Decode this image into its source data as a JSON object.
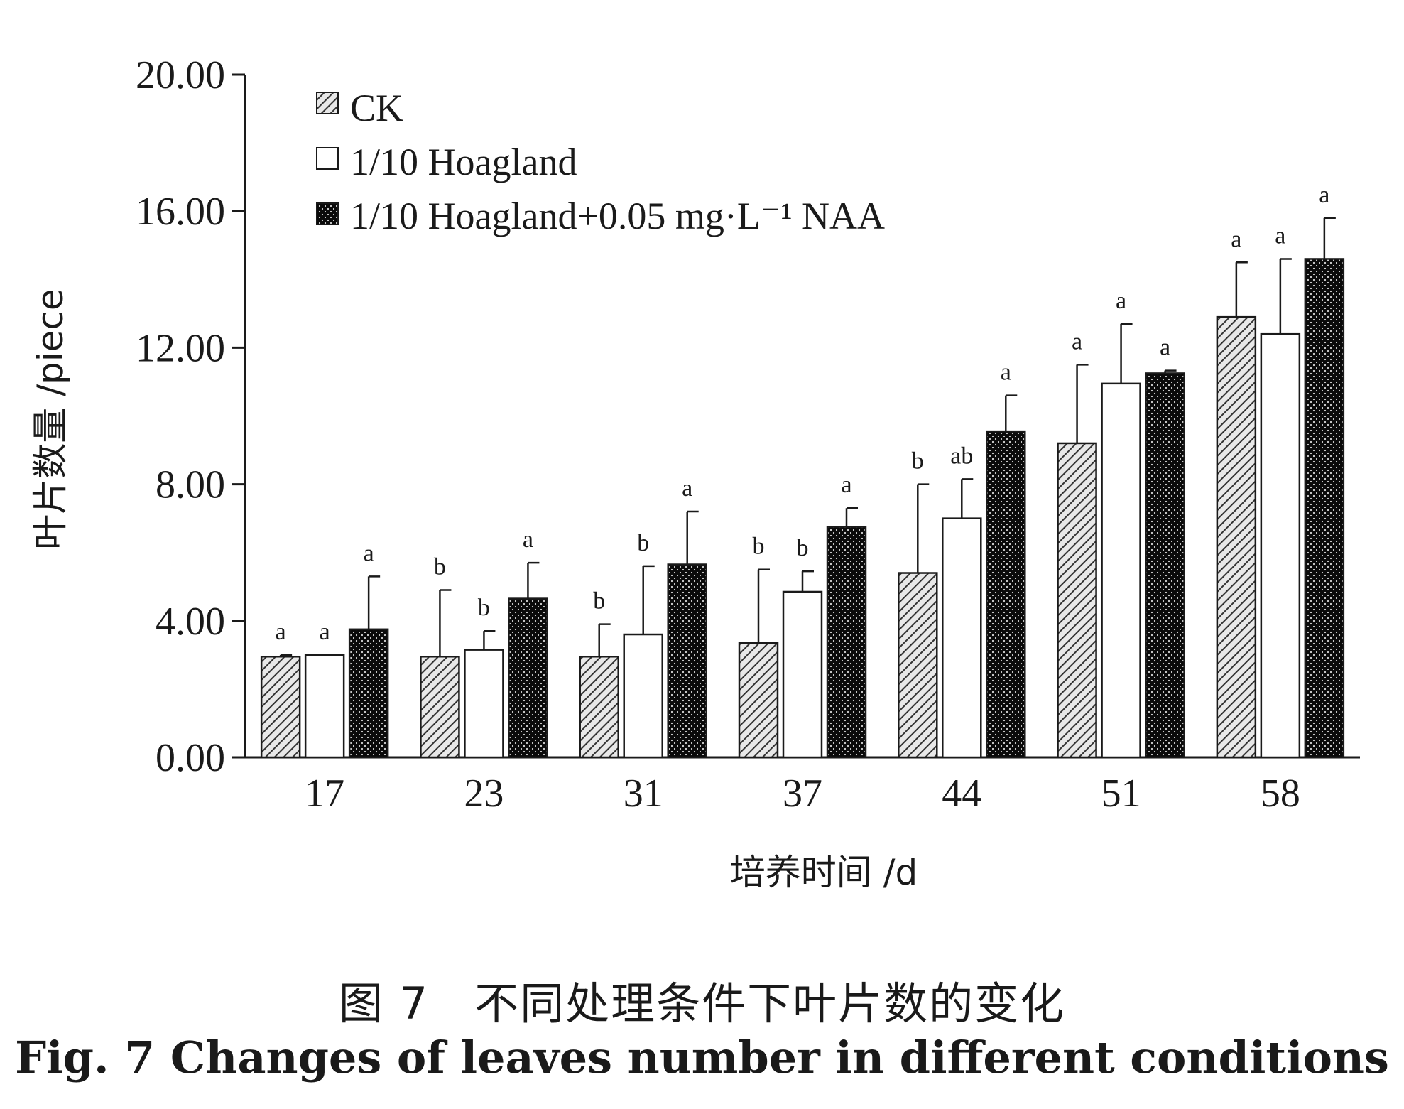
{
  "chart_data": {
    "type": "bar",
    "categories": [
      "17",
      "23",
      "31",
      "37",
      "44",
      "51",
      "58"
    ],
    "xlabel": "培养时间 /d",
    "ylabel": "叶片数量 /piece",
    "ylim": [
      0,
      20
    ],
    "yticks": [
      "0.00",
      "4.00",
      "8.00",
      "12.00",
      "16.00",
      "20.00"
    ],
    "ytick_values": [
      0,
      4,
      8,
      12,
      16,
      20
    ],
    "grid": false,
    "legend_position": "top-left",
    "series": [
      {
        "name": "CK",
        "pattern": "hatched",
        "color": "#555555",
        "values": [
          2.95,
          2.95,
          2.95,
          3.35,
          5.4,
          9.2,
          12.9
        ],
        "errors": [
          0.05,
          1.95,
          0.95,
          2.15,
          2.6,
          2.3,
          1.6
        ],
        "letters": [
          "a",
          "b",
          "b",
          "b",
          "b",
          "a",
          "a"
        ]
      },
      {
        "name": "1/10 Hoagland",
        "pattern": "open",
        "color": "#ffffff",
        "values": [
          3.0,
          3.15,
          3.6,
          4.85,
          7.0,
          10.95,
          12.4
        ],
        "errors": [
          0.0,
          0.55,
          2.0,
          0.6,
          1.15,
          1.75,
          2.2
        ],
        "letters": [
          "a",
          "b",
          "b",
          "b",
          "ab",
          "a",
          "a"
        ]
      },
      {
        "name": "1/10 Hoagland+0.05 mg·L⁻¹ NAA",
        "pattern": "dotted-dark",
        "color": "#111111",
        "values": [
          3.75,
          4.65,
          5.65,
          6.75,
          9.55,
          11.25,
          14.6
        ],
        "errors": [
          1.55,
          1.05,
          1.55,
          0.55,
          1.05,
          0.08,
          1.2
        ],
        "letters": [
          "a",
          "a",
          "a",
          "a",
          "a",
          "a",
          "a"
        ]
      }
    ]
  },
  "caption": {
    "cn": "图 7　不同处理条件下叶片数的变化",
    "en": "Fig. 7   Changes of leaves number in different conditions"
  }
}
